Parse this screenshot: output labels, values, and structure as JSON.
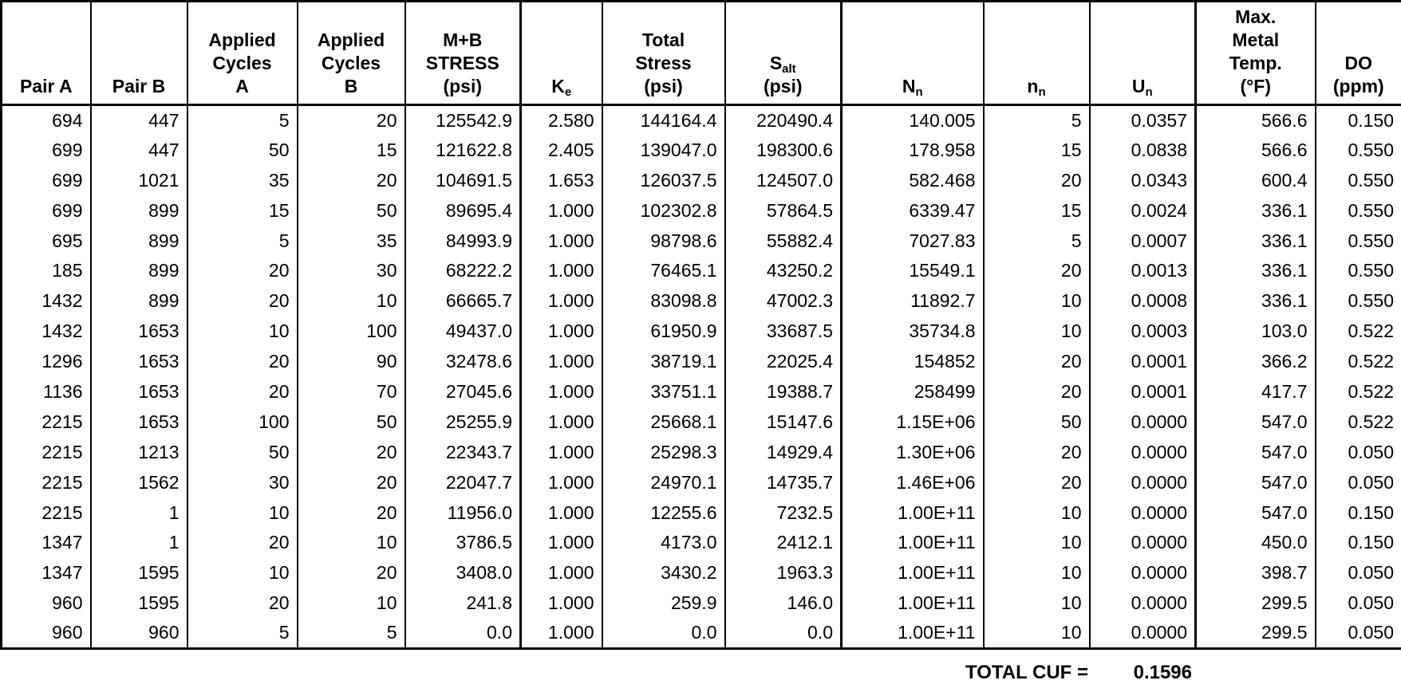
{
  "table": {
    "columns": [
      {
        "id": "pair-a",
        "label": "Pair A"
      },
      {
        "id": "pair-b",
        "label": "Pair B"
      },
      {
        "id": "applied-cycles-a",
        "label": "Applied\nCycles\nA"
      },
      {
        "id": "applied-cycles-b",
        "label": "Applied\nCycles\nB"
      },
      {
        "id": "mb-stress",
        "label": "M+B\nSTRESS\n(psi)"
      },
      {
        "id": "ke",
        "label": "K_{e}"
      },
      {
        "id": "total-stress",
        "label": "Total\nStress\n(psi)"
      },
      {
        "id": "salt",
        "label": "S_{alt}\n(psi)"
      },
      {
        "id": "nn-capital",
        "label": "N_{n}"
      },
      {
        "id": "nn-lower",
        "label": "n_{n}"
      },
      {
        "id": "un",
        "label": "U_{n}"
      },
      {
        "id": "max-metal-temp",
        "label": "Max.\nMetal\nTemp.\n(°F)"
      },
      {
        "id": "do-ppm",
        "label": "DO\n(ppm)"
      }
    ],
    "rows": [
      [
        "694",
        "447",
        "5",
        "20",
        "125542.9",
        "2.580",
        "144164.4",
        "220490.4",
        "140.005",
        "5",
        "0.0357",
        "566.6",
        "0.150"
      ],
      [
        "699",
        "447",
        "50",
        "15",
        "121622.8",
        "2.405",
        "139047.0",
        "198300.6",
        "178.958",
        "15",
        "0.0838",
        "566.6",
        "0.550"
      ],
      [
        "699",
        "1021",
        "35",
        "20",
        "104691.5",
        "1.653",
        "126037.5",
        "124507.0",
        "582.468",
        "20",
        "0.0343",
        "600.4",
        "0.550"
      ],
      [
        "699",
        "899",
        "15",
        "50",
        "89695.4",
        "1.000",
        "102302.8",
        "57864.5",
        "6339.47",
        "15",
        "0.0024",
        "336.1",
        "0.550"
      ],
      [
        "695",
        "899",
        "5",
        "35",
        "84993.9",
        "1.000",
        "98798.6",
        "55882.4",
        "7027.83",
        "5",
        "0.0007",
        "336.1",
        "0.550"
      ],
      [
        "185",
        "899",
        "20",
        "30",
        "68222.2",
        "1.000",
        "76465.1",
        "43250.2",
        "15549.1",
        "20",
        "0.0013",
        "336.1",
        "0.550"
      ],
      [
        "1432",
        "899",
        "20",
        "10",
        "66665.7",
        "1.000",
        "83098.8",
        "47002.3",
        "11892.7",
        "10",
        "0.0008",
        "336.1",
        "0.550"
      ],
      [
        "1432",
        "1653",
        "10",
        "100",
        "49437.0",
        "1.000",
        "61950.9",
        "33687.5",
        "35734.8",
        "10",
        "0.0003",
        "103.0",
        "0.522"
      ],
      [
        "1296",
        "1653",
        "20",
        "90",
        "32478.6",
        "1.000",
        "38719.1",
        "22025.4",
        "154852",
        "20",
        "0.0001",
        "366.2",
        "0.522"
      ],
      [
        "1136",
        "1653",
        "20",
        "70",
        "27045.6",
        "1.000",
        "33751.1",
        "19388.7",
        "258499",
        "20",
        "0.0001",
        "417.7",
        "0.522"
      ],
      [
        "2215",
        "1653",
        "100",
        "50",
        "25255.9",
        "1.000",
        "25668.1",
        "15147.6",
        "1.15E+06",
        "50",
        "0.0000",
        "547.0",
        "0.522"
      ],
      [
        "2215",
        "1213",
        "50",
        "20",
        "22343.7",
        "1.000",
        "25298.3",
        "14929.4",
        "1.30E+06",
        "20",
        "0.0000",
        "547.0",
        "0.050"
      ],
      [
        "2215",
        "1562",
        "30",
        "20",
        "22047.7",
        "1.000",
        "24970.1",
        "14735.7",
        "1.46E+06",
        "20",
        "0.0000",
        "547.0",
        "0.050"
      ],
      [
        "2215",
        "1",
        "10",
        "20",
        "11956.0",
        "1.000",
        "12255.6",
        "7232.5",
        "1.00E+11",
        "10",
        "0.0000",
        "547.0",
        "0.150"
      ],
      [
        "1347",
        "1",
        "20",
        "10",
        "3786.5",
        "1.000",
        "4173.0",
        "2412.1",
        "1.00E+11",
        "10",
        "0.0000",
        "450.0",
        "0.150"
      ],
      [
        "1347",
        "1595",
        "10",
        "20",
        "3408.0",
        "1.000",
        "3430.2",
        "1963.3",
        "1.00E+11",
        "10",
        "0.0000",
        "398.7",
        "0.050"
      ],
      [
        "960",
        "1595",
        "20",
        "10",
        "241.8",
        "1.000",
        "259.9",
        "146.0",
        "1.00E+11",
        "10",
        "0.0000",
        "299.5",
        "0.050"
      ],
      [
        "960",
        "960",
        "5",
        "5",
        "0.0",
        "1.000",
        "0.0",
        "0.0",
        "1.00E+11",
        "10",
        "0.0000",
        "299.5",
        "0.050"
      ]
    ],
    "footer": {
      "label": "TOTAL CUF =",
      "value": "0.1596"
    }
  }
}
